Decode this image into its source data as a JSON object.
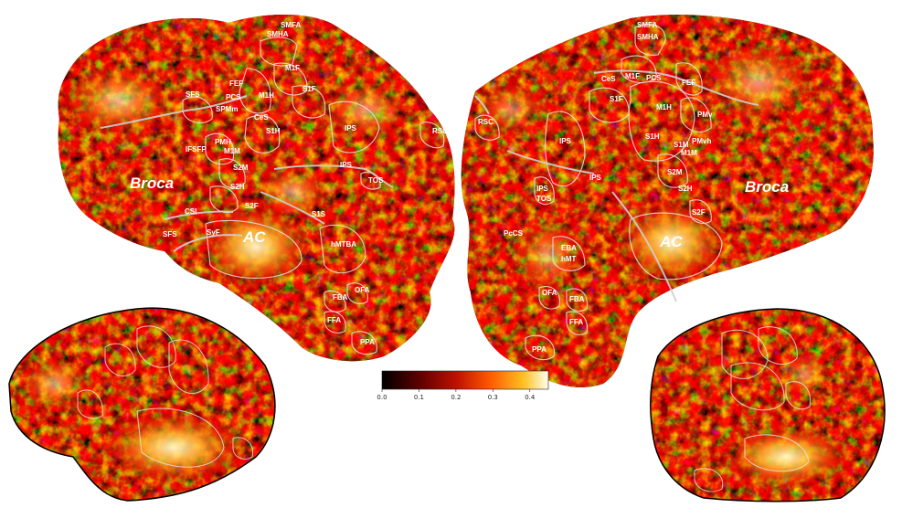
{
  "big_labels": {
    "left_broca": "Broca",
    "left_ac": "AC",
    "right_broca": "Broca",
    "right_ac": "AC"
  },
  "left_flatmap_rois": [
    "SMFA",
    "SMHA",
    "M1F",
    "M1H",
    "S1F",
    "SFS",
    "FEF",
    "PCS",
    "SPMm",
    "CeS",
    "IPS",
    "RSC",
    "PMH",
    "IFSFP",
    "M1M",
    "S1H",
    "S2M",
    "S2H",
    "CSI",
    "S2F",
    "SyF",
    "IPS",
    "TOS",
    "S1S",
    "hMTBA",
    "FBA",
    "OFA",
    "FFA",
    "PPA",
    "SFS"
  ],
  "right_flatmap_rois": [
    "SMFA",
    "SMHA",
    "CeS",
    "M1F",
    "PCS",
    "S1F",
    "FEF",
    "M1H",
    "S1H",
    "RSC",
    "IPS",
    "IPS",
    "IPS",
    "TOS",
    "PcCS",
    "S2M",
    "S2H",
    "S2F",
    "EBA",
    "hMT",
    "OFA",
    "FBA",
    "FFA",
    "PPA",
    "M1M",
    "S1M",
    "PMvh",
    "PMv"
  ],
  "colorbar": {
    "ticks": [
      "0.0",
      "0.1",
      "0.2",
      "0.3",
      "0.4"
    ],
    "colors": [
      "#000000",
      "#5a0000",
      "#c01000",
      "#ff5a00",
      "#ffc020",
      "#fffff0"
    ]
  }
}
